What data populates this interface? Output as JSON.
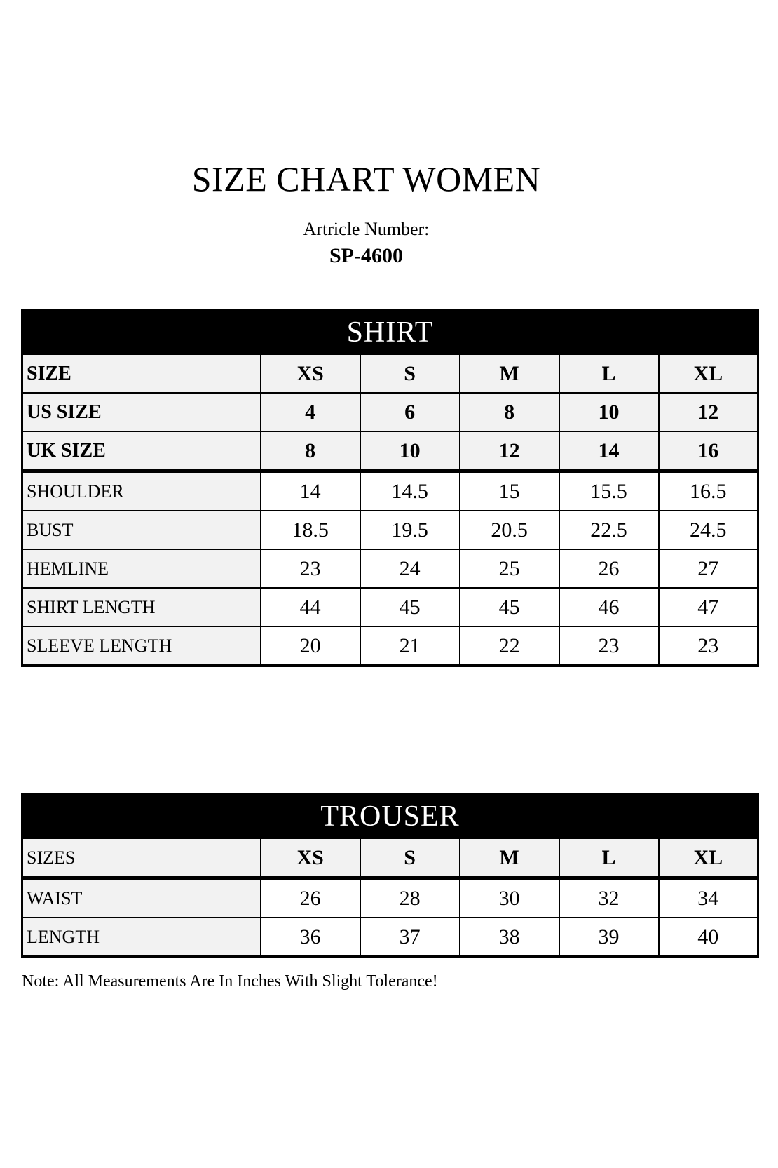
{
  "header": {
    "title": "SIZE CHART WOMEN",
    "article_label": "Artricle Number:",
    "article_number": "SP-4600"
  },
  "shirt": {
    "title": "SHIRT",
    "rows": [
      {
        "label": "SIZE",
        "v": [
          "XS",
          "S",
          "M",
          "L",
          "XL"
        ]
      },
      {
        "label": "US SIZE",
        "v": [
          "4",
          "6",
          "8",
          "10",
          "12"
        ]
      },
      {
        "label": "UK SIZE",
        "v": [
          "8",
          "10",
          "12",
          "14",
          "16"
        ]
      },
      {
        "label": "SHOULDER",
        "v": [
          "14",
          "14.5",
          "15",
          "15.5",
          "16.5"
        ]
      },
      {
        "label": "BUST",
        "v": [
          "18.5",
          "19.5",
          "20.5",
          "22.5",
          "24.5"
        ]
      },
      {
        "label": "HEMLINE",
        "v": [
          "23",
          "24",
          "25",
          "26",
          "27"
        ]
      },
      {
        "label": "SHIRT LENGTH",
        "v": [
          "44",
          "45",
          "45",
          "46",
          "47"
        ]
      },
      {
        "label": "SLEEVE LENGTH",
        "v": [
          "20",
          "21",
          "22",
          "23",
          "23"
        ]
      }
    ]
  },
  "trouser": {
    "title": "TROUSER",
    "rows": [
      {
        "label": "SIZES",
        "v": [
          "XS",
          "S",
          "M",
          "L",
          "XL"
        ]
      },
      {
        "label": "WAIST",
        "v": [
          "26",
          "28",
          "30",
          "32",
          "34"
        ]
      },
      {
        "label": "LENGTH",
        "v": [
          "36",
          "37",
          "38",
          "39",
          "40"
        ]
      }
    ]
  },
  "footer": {
    "note": "Note: All Measurements Are In Inches With Slight Tolerance!"
  },
  "colors": {
    "band_bg": "#000000",
    "band_text": "#ffffff",
    "shaded_cell_bg": "#f2f2f2",
    "border": "#000000",
    "page_bg": "#ffffff"
  },
  "chart_data": [
    {
      "type": "table",
      "title": "SHIRT",
      "columns": [
        "",
        "XS",
        "S",
        "M",
        "L",
        "XL"
      ],
      "rows": [
        [
          "SIZE",
          "XS",
          "S",
          "M",
          "L",
          "XL"
        ],
        [
          "US SIZE",
          4,
          6,
          8,
          10,
          12
        ],
        [
          "UK SIZE",
          8,
          10,
          12,
          14,
          16
        ],
        [
          "SHOULDER",
          14,
          14.5,
          15,
          15.5,
          16.5
        ],
        [
          "BUST",
          18.5,
          19.5,
          20.5,
          22.5,
          24.5
        ],
        [
          "HEMLINE",
          23,
          24,
          25,
          26,
          27
        ],
        [
          "SHIRT LENGTH",
          44,
          45,
          45,
          46,
          47
        ],
        [
          "SLEEVE LENGTH",
          20,
          21,
          22,
          23,
          23
        ]
      ]
    },
    {
      "type": "table",
      "title": "TROUSER",
      "columns": [
        "",
        "XS",
        "S",
        "M",
        "L",
        "XL"
      ],
      "rows": [
        [
          "SIZES",
          "XS",
          "S",
          "M",
          "L",
          "XL"
        ],
        [
          "WAIST",
          26,
          28,
          30,
          32,
          34
        ],
        [
          "LENGTH",
          36,
          37,
          38,
          39,
          40
        ]
      ]
    }
  ]
}
